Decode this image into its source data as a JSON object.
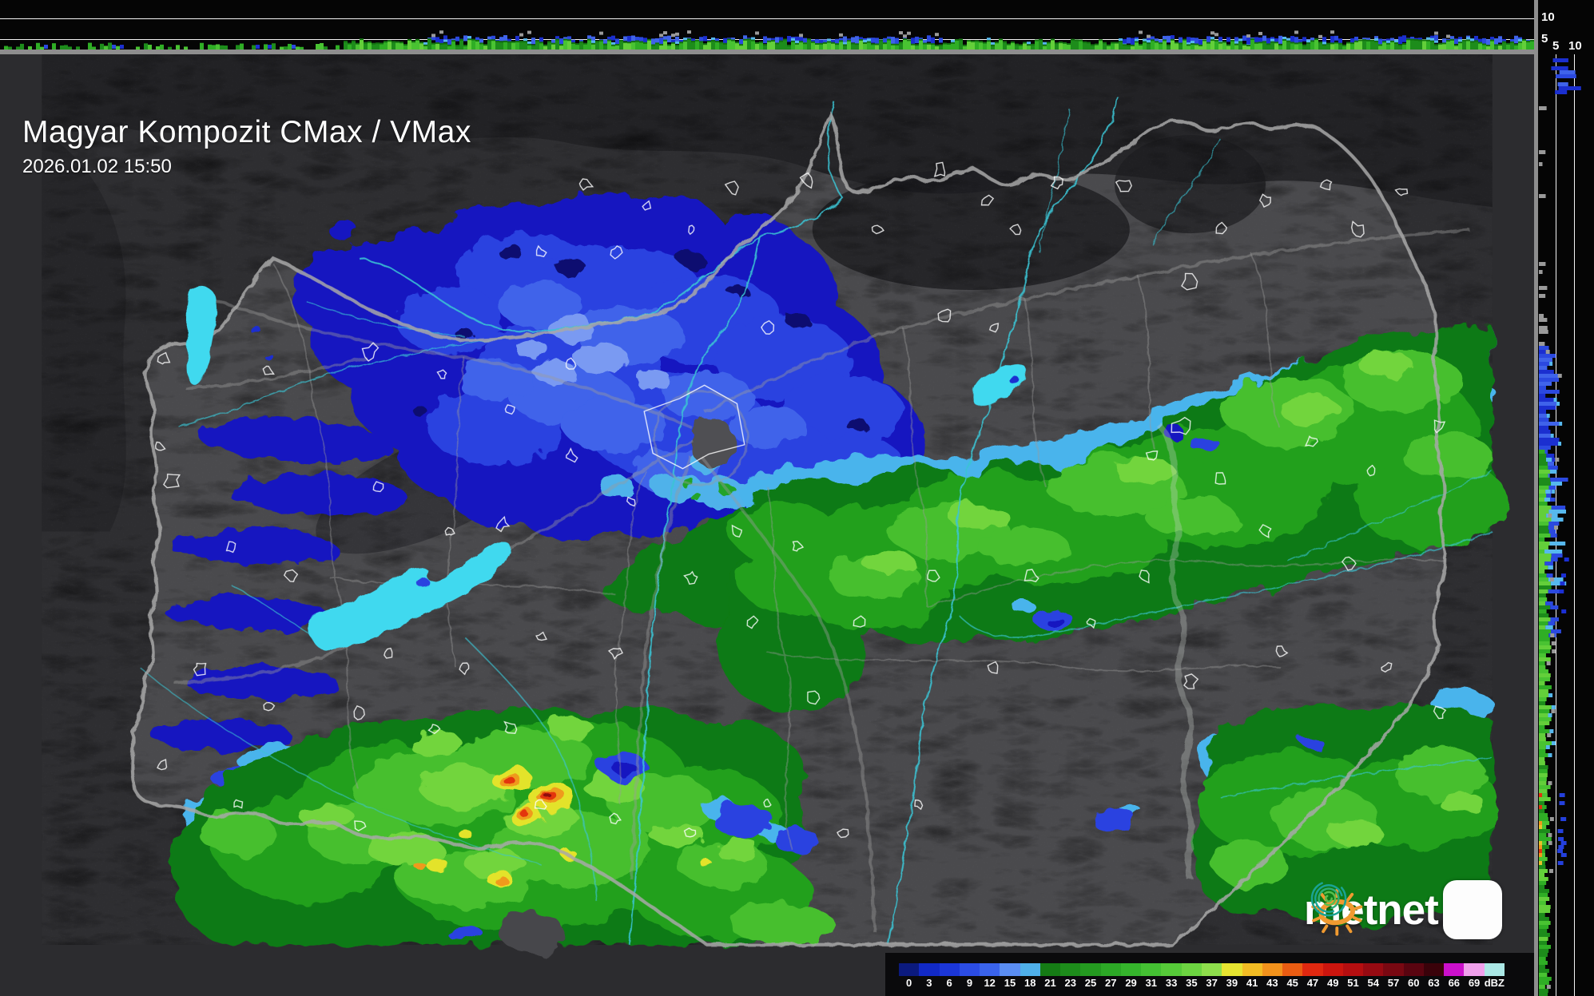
{
  "header": {
    "title": "Magyar Kompozit CMax / VMax",
    "timestamp": "2026.01.02 15:50"
  },
  "profile_axes": {
    "top_strip_ticks": [
      "10",
      "5"
    ],
    "right_strip_ticks": [
      "5",
      "10"
    ]
  },
  "colorbar": {
    "unit": "dBZ",
    "ticks": [
      "0",
      "3",
      "6",
      "9",
      "12",
      "15",
      "18",
      "21",
      "23",
      "25",
      "27",
      "29",
      "31",
      "33",
      "35",
      "37",
      "39",
      "41",
      "43",
      "45",
      "47",
      "49",
      "51",
      "54",
      "57",
      "60",
      "63",
      "66",
      "69"
    ],
    "colors": [
      "#0b1a7e",
      "#1129c6",
      "#1b36d8",
      "#2b4ce4",
      "#3a63ec",
      "#5a8df2",
      "#4fb0ea",
      "#157c15",
      "#1d8c1b",
      "#249a20",
      "#2ca826",
      "#35b42c",
      "#44c033",
      "#56ca39",
      "#6cd441",
      "#8ede4c",
      "#e6e431",
      "#f2bc24",
      "#f2921c",
      "#ea5c12",
      "#e02810",
      "#cc150e",
      "#b50e10",
      "#970a12",
      "#790812",
      "#5a0410",
      "#3a020a",
      "#cc10cc",
      "#f0a0ec",
      "#abe8e6"
    ]
  },
  "branding": {
    "logo_text": "metnet"
  },
  "palette": {
    "lake_cyan": "#3fd9ef",
    "river_teal": "#3cc4d4",
    "border_gray": "#a8a8a8",
    "echo_blues": [
      "#1b2fd0",
      "#2b49e0",
      "#3f63ea",
      "#56a6ec"
    ],
    "echo_greens": [
      "#1d8c1b",
      "#2fae25",
      "#49c332",
      "#63cf3a"
    ],
    "echo_cyan": "#56b8ee",
    "echo_gray": "#9a9a9a"
  }
}
